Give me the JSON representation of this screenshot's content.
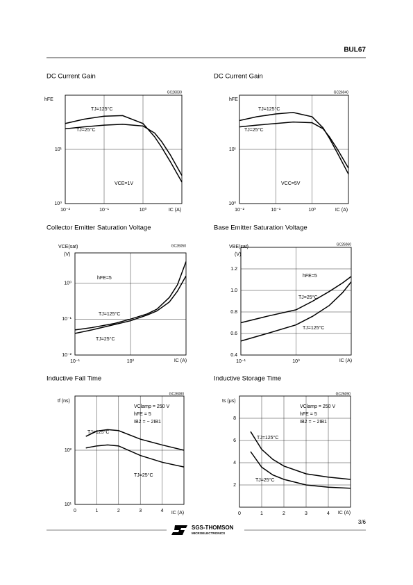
{
  "header": {
    "part": "BUL67"
  },
  "footer": {
    "page": "3/6",
    "logo": "SGS-THOMSON",
    "logo_sub": "MICROELECTRONICS"
  },
  "chart_data": [
    {
      "type": "line",
      "title": "DC Current Gain",
      "code": "GC26030",
      "ylabel": "hFE",
      "xlabel": "IC (A)",
      "xscale": "log",
      "yscale": "log",
      "grid": true,
      "xlim": [
        0.01,
        10
      ],
      "ylim": [
        1,
        100
      ],
      "xticks": [
        {
          "value": 0.01,
          "label": "10⁻²"
        },
        {
          "value": 0.1,
          "label": "10⁻¹"
        },
        {
          "value": 1,
          "label": "10⁰"
        }
      ],
      "yticks": [
        {
          "value": 1,
          "label": "10⁰"
        },
        {
          "value": 10,
          "label": "10¹"
        }
      ],
      "x": [
        0.01,
        0.03,
        0.1,
        0.3,
        1,
        2,
        3,
        5,
        10
      ],
      "series": [
        {
          "name": "TJ=125°C",
          "color": "#000000",
          "values": [
            30,
            36,
            41,
            42,
            30,
            17,
            11,
            6,
            2.5
          ]
        },
        {
          "name": "TJ=25°C",
          "color": "#000000",
          "values": [
            24,
            26,
            28,
            29,
            27,
            20,
            14,
            8,
            3.3
          ]
        }
      ],
      "annotations": [
        "VCE=1V"
      ]
    },
    {
      "type": "line",
      "title": "DC Current Gain",
      "code": "GC26040",
      "ylabel": "hFE",
      "xlabel": "IC (A)",
      "xscale": "log",
      "yscale": "log",
      "grid": true,
      "xlim": [
        0.01,
        10
      ],
      "ylim": [
        1,
        100
      ],
      "xticks": [
        {
          "value": 0.01,
          "label": "10⁻²"
        },
        {
          "value": 0.1,
          "label": "10⁻¹"
        },
        {
          "value": 1,
          "label": "10⁰"
        }
      ],
      "yticks": [
        {
          "value": 1,
          "label": "10⁰"
        },
        {
          "value": 10,
          "label": "10¹"
        }
      ],
      "x": [
        0.01,
        0.03,
        0.1,
        0.3,
        1,
        2,
        3,
        5,
        10
      ],
      "series": [
        {
          "name": "TJ=125°C",
          "color": "#000000",
          "values": [
            34,
            40,
            45,
            48,
            40,
            25,
            16,
            8.5,
            3.5
          ]
        },
        {
          "name": "TJ=25°C",
          "color": "#000000",
          "values": [
            26,
            28,
            30,
            32,
            31,
            24,
            17,
            10,
            4.5
          ]
        }
      ],
      "annotations": [
        "VCC=5V"
      ]
    },
    {
      "type": "line",
      "title": "Collector Emitter Saturation Voltage",
      "code": "GC26050",
      "ylabel": "VCE(sat)",
      "yunit": "(V)",
      "xlabel": "IC (A)",
      "xscale": "log",
      "yscale": "log",
      "grid": true,
      "xlim": [
        0.1,
        10
      ],
      "ylim": [
        0.01,
        7
      ],
      "xticks": [
        {
          "value": 0.1,
          "label": "10⁻¹"
        },
        {
          "value": 1,
          "label": "10⁰"
        }
      ],
      "yticks": [
        {
          "value": 0.01,
          "label": "10⁻²"
        },
        {
          "value": 0.1,
          "label": "10⁻¹"
        },
        {
          "value": 1,
          "label": "10⁰"
        }
      ],
      "x": [
        0.1,
        0.2,
        0.5,
        1,
        2,
        3,
        5,
        7,
        10
      ],
      "series": [
        {
          "name": "TJ=125°C",
          "color": "#000000",
          "values": [
            0.05,
            0.058,
            0.075,
            0.1,
            0.14,
            0.19,
            0.4,
            0.9,
            4
          ]
        },
        {
          "name": "TJ=25°C",
          "color": "#000000",
          "values": [
            0.04,
            0.05,
            0.07,
            0.09,
            0.13,
            0.17,
            0.3,
            0.6,
            1.6
          ]
        }
      ],
      "annotations": [
        "hFE=5"
      ]
    },
    {
      "type": "line",
      "title": "Base Emitter Saturation Voltage",
      "code": "GC26060",
      "ylabel": "VBE(sat)",
      "yunit": "(V)",
      "xlabel": "IC (A)",
      "xscale": "log",
      "yscale": "linear",
      "grid": true,
      "xlim": [
        0.1,
        10
      ],
      "ylim": [
        0.4,
        1.4
      ],
      "xticks": [
        {
          "value": 0.1,
          "label": "10⁻¹"
        },
        {
          "value": 1,
          "label": "10⁰"
        }
      ],
      "yticks": [
        0.4,
        0.6,
        0.8,
        {
          "value": 1,
          "label": "1.0"
        },
        1.2
      ],
      "x": [
        0.1,
        0.3,
        1,
        2,
        4,
        7,
        10
      ],
      "series": [
        {
          "name": "TJ=25°C",
          "color": "#000000",
          "values": [
            0.7,
            0.76,
            0.82,
            0.9,
            0.99,
            1.07,
            1.13
          ]
        },
        {
          "name": "TJ=125°C",
          "color": "#000000",
          "values": [
            0.53,
            0.6,
            0.68,
            0.76,
            0.86,
            0.98,
            1.08
          ]
        }
      ],
      "annotations": [
        "hFE=5"
      ]
    },
    {
      "type": "line",
      "title": "Inductive Fall  Time",
      "code": "GC26080",
      "ylabel": "tf (ns)",
      "xlabel": "IC (A)",
      "xscale": "linear",
      "yscale": "log",
      "grid": true,
      "xlim": [
        0,
        5
      ],
      "ylim": [
        10,
        1000
      ],
      "xticks": [
        0,
        1,
        2,
        3,
        4
      ],
      "yticks": [
        {
          "value": 10,
          "label": "10¹"
        },
        {
          "value": 100,
          "label": "10²"
        }
      ],
      "x": [
        0.5,
        1,
        1.5,
        2,
        3,
        4,
        5
      ],
      "series": [
        {
          "name": "TJ=125°C",
          "color": "#000000",
          "values": [
            180,
            225,
            240,
            230,
            160,
            125,
            100
          ]
        },
        {
          "name": "TJ=25°C",
          "color": "#000000",
          "values": [
            110,
            120,
            125,
            120,
            80,
            60,
            49
          ]
        }
      ],
      "annotations": [
        "VClamp = 250 V",
        "hFE = 5",
        "IB2 = − 2IB1"
      ]
    },
    {
      "type": "line",
      "title": "Inductive Storage  Time",
      "code": "GC26090",
      "ylabel": "ts (μs)",
      "xlabel": "IC (A)",
      "xscale": "linear",
      "yscale": "linear",
      "grid": true,
      "xlim": [
        0,
        5
      ],
      "ylim": [
        0,
        10
      ],
      "xticks": [
        0,
        1,
        2,
        3,
        4
      ],
      "yticks": [
        2,
        4,
        6,
        8
      ],
      "x": [
        0.5,
        1,
        1.5,
        2,
        3,
        4,
        5
      ],
      "series": [
        {
          "name": "TJ=125°C",
          "color": "#000000",
          "values": [
            6.8,
            5.2,
            4.3,
            3.7,
            3.0,
            2.7,
            2.5
          ]
        },
        {
          "name": "TJ=25°C",
          "color": "#000000",
          "values": [
            5.0,
            3.6,
            2.9,
            2.5,
            2.0,
            1.8,
            1.7
          ]
        }
      ],
      "annotations": [
        "VClamp = 250 V",
        "hFE = 5",
        "IB2 = − 2IB1"
      ]
    }
  ]
}
